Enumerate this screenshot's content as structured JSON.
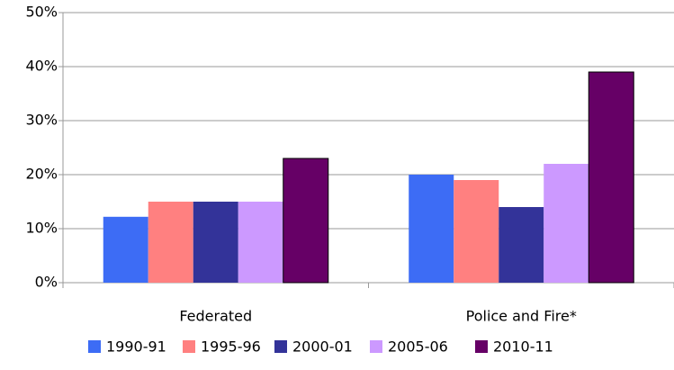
{
  "chart_data": {
    "type": "bar",
    "categories": [
      "Federated",
      "Police and Fire*"
    ],
    "series": [
      {
        "name": "1990-91",
        "color": "#3d6cf5",
        "values": [
          12.2,
          20
        ]
      },
      {
        "name": "1995-96",
        "color": "#ff8080",
        "values": [
          15,
          19
        ]
      },
      {
        "name": "2000-01",
        "color": "#333399",
        "values": [
          15,
          14
        ]
      },
      {
        "name": "2005-06",
        "color": "#cc99ff",
        "values": [
          15,
          22
        ]
      },
      {
        "name": "2010-11",
        "color": "#660066",
        "values": [
          23,
          39
        ]
      }
    ],
    "ylim": [
      0,
      50
    ],
    "yticks": [
      {
        "value": 0,
        "label": "0%"
      },
      {
        "value": 10,
        "label": "10%"
      },
      {
        "value": 20,
        "label": "20%"
      },
      {
        "value": 30,
        "label": "30%"
      },
      {
        "value": 40,
        "label": "40%"
      },
      {
        "value": 50,
        "label": "50%"
      }
    ],
    "grid": true,
    "legend": "bottom"
  }
}
